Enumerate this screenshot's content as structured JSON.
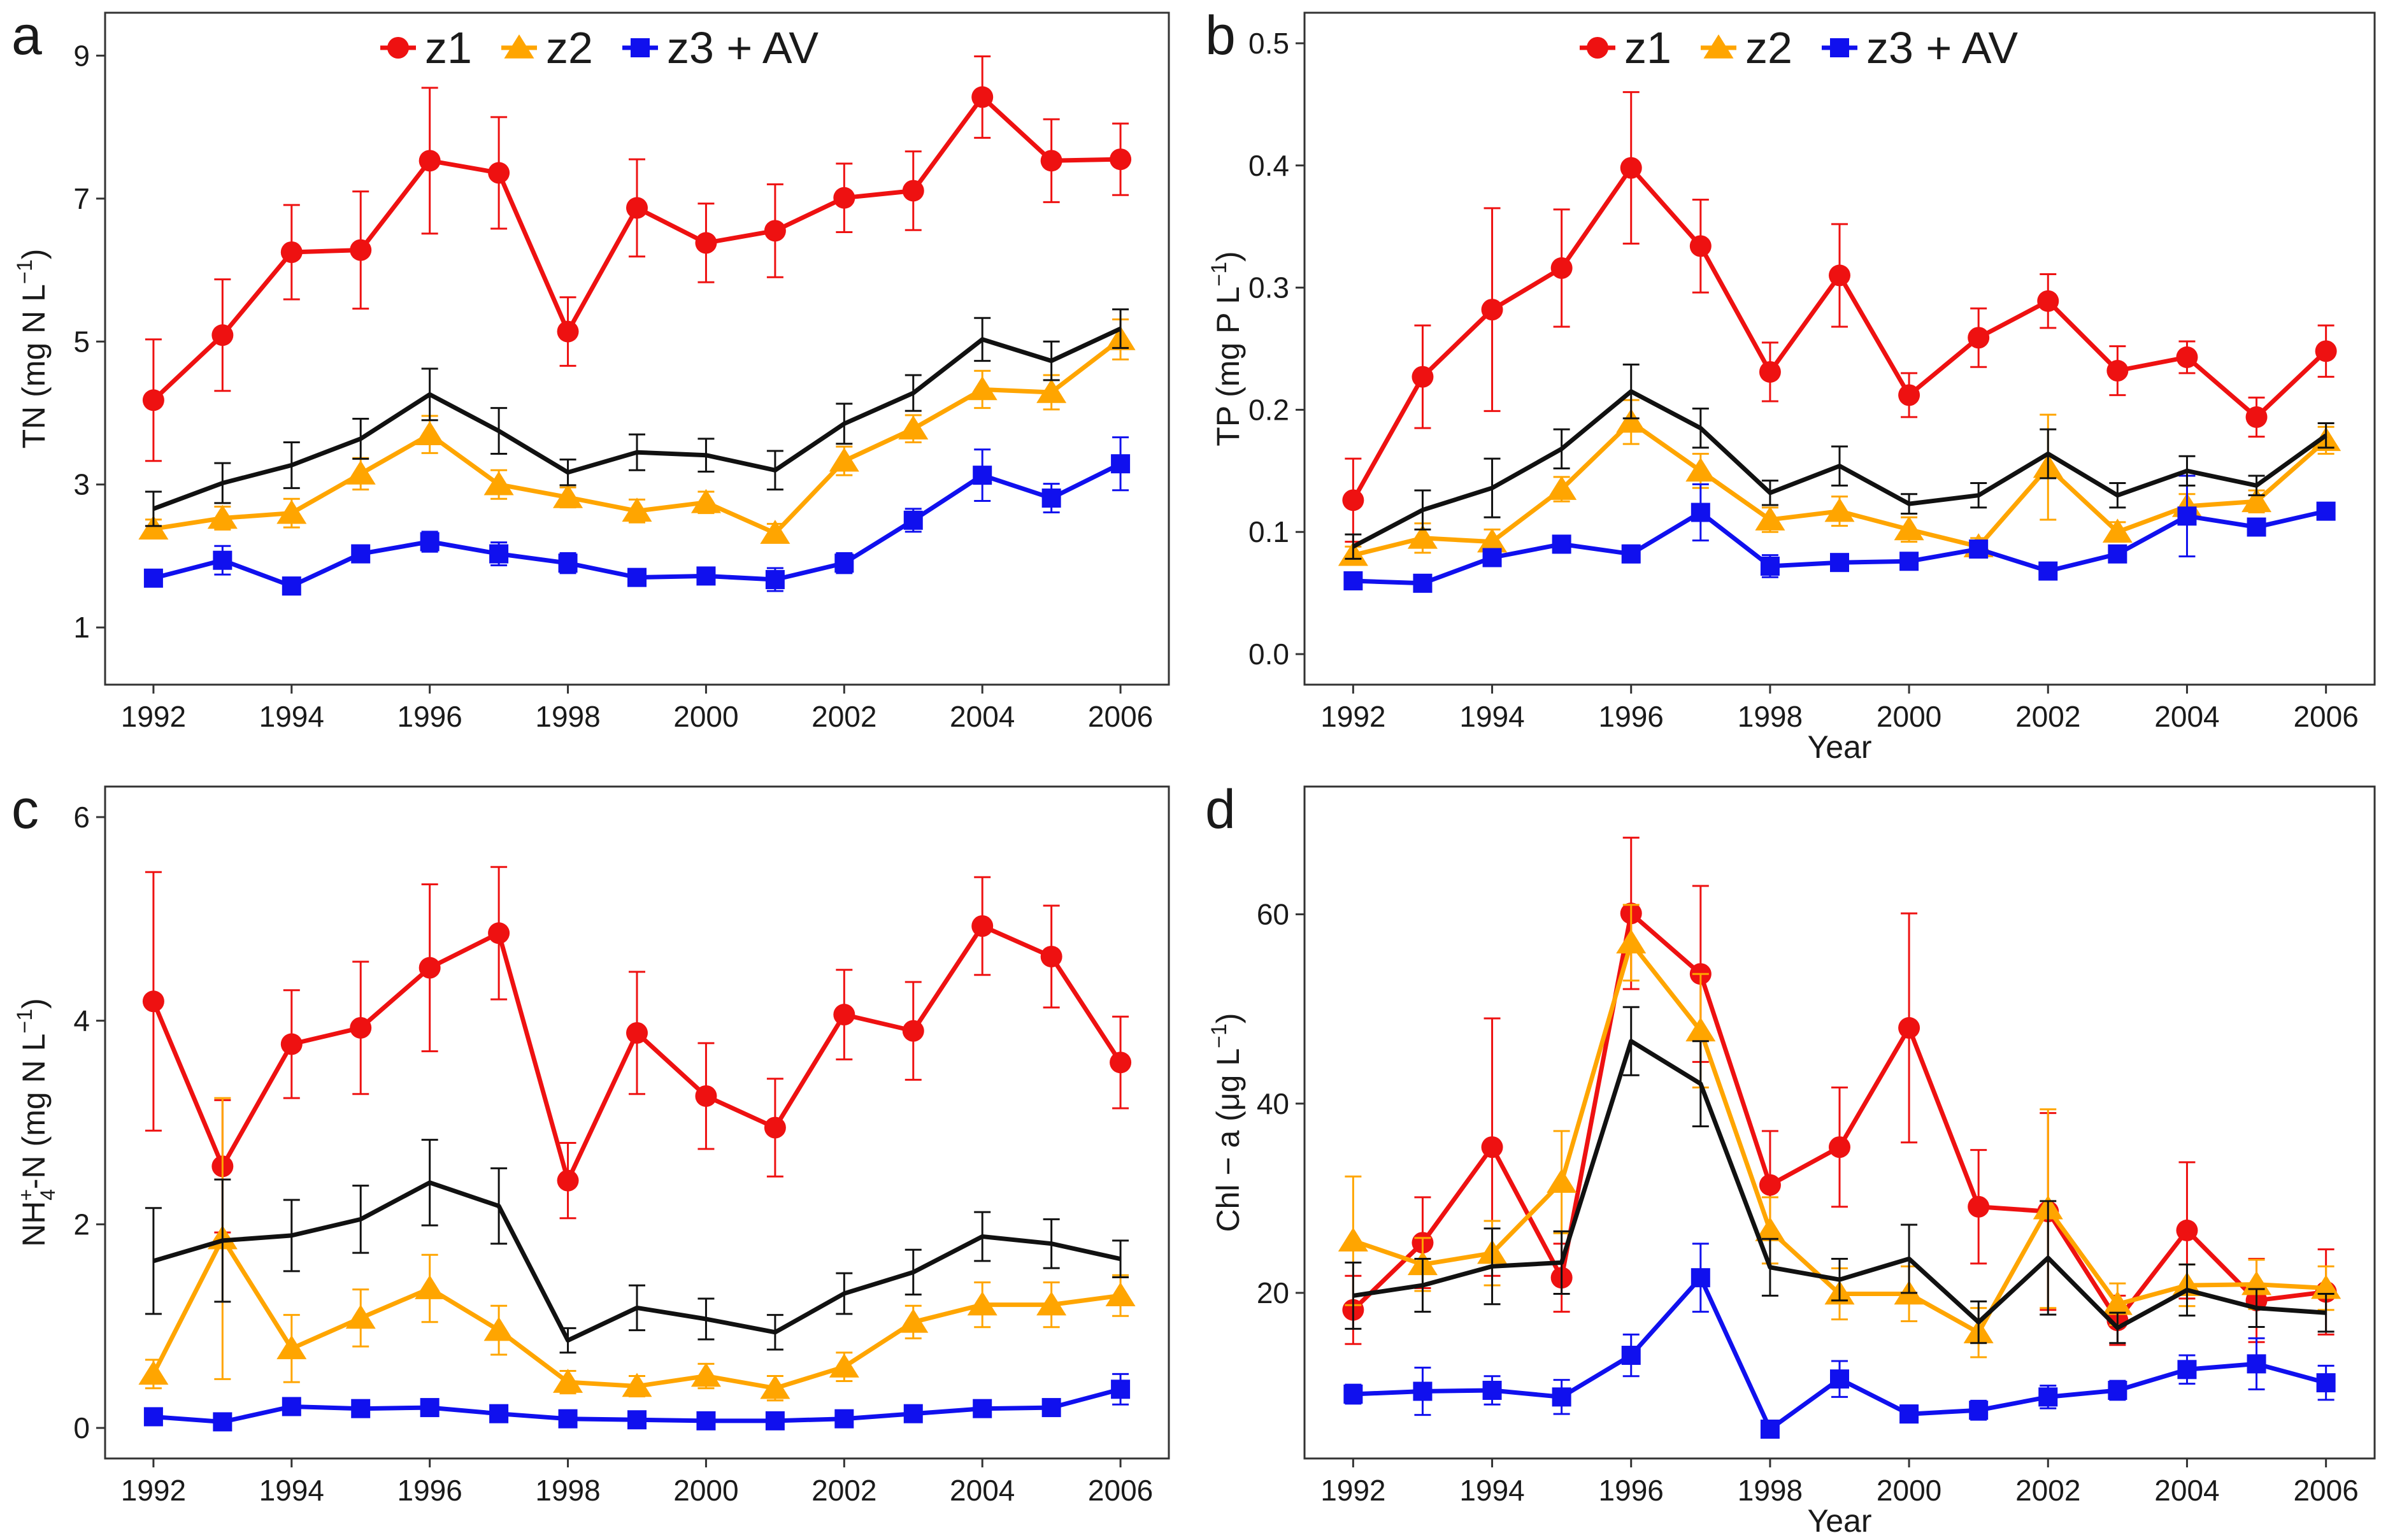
{
  "colors": {
    "z1": "#ee1111",
    "z2": "#ffa500",
    "z3": "#1010ee",
    "mean": "#111111"
  },
  "legend": {
    "z1": "z1",
    "z2": "z2",
    "z3": "z3 + AV"
  },
  "chart_data": [
    {
      "panel": "a",
      "type": "line",
      "xlabel": "",
      "ylabel": "TN",
      "ylim": [
        0.2,
        9.6
      ],
      "yticks": [
        1,
        3,
        5,
        7,
        9
      ],
      "x": [
        1992,
        1993,
        1994,
        1995,
        1996,
        1997,
        1998,
        1999,
        2000,
        2001,
        2002,
        2003,
        2004,
        2005,
        2006
      ],
      "xticks": [
        1992,
        1994,
        1996,
        1998,
        2000,
        2002,
        2004,
        2006
      ],
      "series": [
        {
          "name": "z1",
          "values": [
            4.18,
            5.09,
            6.25,
            6.28,
            7.53,
            7.36,
            5.14,
            6.87,
            6.38,
            6.55,
            7.01,
            7.11,
            8.42,
            7.53,
            7.55
          ],
          "err": [
            0.85,
            0.78,
            0.66,
            0.82,
            1.02,
            0.78,
            0.48,
            0.68,
            0.55,
            0.65,
            0.48,
            0.55,
            0.57,
            0.58,
            0.5
          ]
        },
        {
          "name": "z2",
          "values": [
            2.38,
            2.53,
            2.6,
            3.15,
            3.7,
            3.0,
            2.82,
            2.63,
            2.75,
            2.32,
            3.33,
            3.78,
            4.33,
            4.29,
            5.03
          ],
          "err": [
            0.13,
            0.16,
            0.2,
            0.22,
            0.26,
            0.2,
            0.14,
            0.16,
            0.15,
            0.13,
            0.2,
            0.19,
            0.26,
            0.24,
            0.28
          ]
        },
        {
          "name": "z3 + AV",
          "values": [
            1.69,
            1.94,
            1.58,
            2.03,
            2.2,
            2.03,
            1.9,
            1.7,
            1.72,
            1.67,
            1.9,
            2.5,
            3.13,
            2.81,
            3.29
          ],
          "err": [
            0.1,
            0.2,
            0.07,
            0.1,
            0.14,
            0.16,
            0.14,
            0.1,
            0.08,
            0.16,
            0.14,
            0.16,
            0.36,
            0.2,
            0.37
          ]
        },
        {
          "name": "mean",
          "values": [
            2.66,
            3.02,
            3.27,
            3.64,
            4.26,
            3.75,
            3.17,
            3.45,
            3.41,
            3.2,
            3.85,
            4.28,
            5.03,
            4.73,
            5.18
          ],
          "err": [
            0.24,
            0.28,
            0.32,
            0.28,
            0.36,
            0.32,
            0.18,
            0.25,
            0.23,
            0.27,
            0.28,
            0.25,
            0.3,
            0.27,
            0.27
          ]
        }
      ]
    },
    {
      "panel": "b",
      "type": "line",
      "xlabel": "Year",
      "ylabel": "TP",
      "ylim": [
        -0.025,
        0.525
      ],
      "yticks": [
        0.0,
        0.1,
        0.2,
        0.3,
        0.4,
        0.5
      ],
      "x": [
        1992,
        1993,
        1994,
        1995,
        1996,
        1997,
        1998,
        1999,
        2000,
        2001,
        2002,
        2003,
        2004,
        2005,
        2006
      ],
      "xticks": [
        1992,
        1994,
        1996,
        1998,
        2000,
        2002,
        2004,
        2006
      ],
      "series": [
        {
          "name": "z1",
          "values": [
            0.126,
            0.227,
            0.282,
            0.316,
            0.398,
            0.334,
            0.231,
            0.31,
            0.212,
            0.259,
            0.289,
            0.232,
            0.243,
            0.194,
            0.248
          ],
          "err": [
            0.034,
            0.042,
            0.083,
            0.048,
            0.062,
            0.038,
            0.024,
            0.042,
            0.018,
            0.024,
            0.022,
            0.02,
            0.013,
            0.016,
            0.021
          ]
        },
        {
          "name": "z2",
          "values": [
            0.081,
            0.095,
            0.092,
            0.135,
            0.19,
            0.15,
            0.11,
            0.117,
            0.102,
            0.088,
            0.153,
            0.1,
            0.121,
            0.125,
            0.175
          ],
          "err": [
            0.007,
            0.012,
            0.01,
            0.01,
            0.018,
            0.014,
            0.01,
            0.012,
            0.01,
            0.007,
            0.043,
            0.008,
            0.01,
            0.009,
            0.011
          ]
        },
        {
          "name": "z3 + AV",
          "values": [
            0.06,
            0.058,
            0.079,
            0.09,
            0.082,
            0.116,
            0.072,
            0.075,
            0.076,
            0.086,
            0.068,
            0.082,
            0.113,
            0.104,
            0.117
          ],
          "err": [
            0.005,
            0.006,
            0.007,
            0.007,
            0.007,
            0.023,
            0.009,
            0.006,
            0.004,
            0.005,
            0.006,
            0.005,
            0.033,
            0.005,
            0.005
          ]
        },
        {
          "name": "mean",
          "values": [
            0.088,
            0.118,
            0.136,
            0.168,
            0.215,
            0.185,
            0.132,
            0.154,
            0.123,
            0.13,
            0.164,
            0.13,
            0.15,
            0.138,
            0.179
          ],
          "err": [
            0.01,
            0.016,
            0.024,
            0.016,
            0.022,
            0.016,
            0.01,
            0.016,
            0.008,
            0.01,
            0.02,
            0.01,
            0.012,
            0.008,
            0.01
          ]
        }
      ]
    },
    {
      "panel": "c",
      "type": "line",
      "xlabel": "",
      "ylabel": "NH4-N",
      "ylim": [
        -0.3,
        6.3
      ],
      "yticks": [
        0,
        2,
        4,
        6
      ],
      "x": [
        1992,
        1993,
        1994,
        1995,
        1996,
        1997,
        1998,
        1999,
        2000,
        2001,
        2002,
        2003,
        2004,
        2005,
        2006
      ],
      "xticks": [
        1992,
        1994,
        1996,
        1998,
        2000,
        2002,
        2004,
        2006
      ],
      "series": [
        {
          "name": "z1",
          "values": [
            4.19,
            2.57,
            3.77,
            3.93,
            4.52,
            4.86,
            2.43,
            3.88,
            3.26,
            2.95,
            4.06,
            3.9,
            4.93,
            4.63,
            3.59
          ],
          "err": [
            1.27,
            0.65,
            0.53,
            0.65,
            0.82,
            0.65,
            0.37,
            0.6,
            0.52,
            0.48,
            0.44,
            0.48,
            0.48,
            0.5,
            0.45
          ]
        },
        {
          "name": "z2",
          "values": [
            0.53,
            1.86,
            0.78,
            1.08,
            1.37,
            0.96,
            0.45,
            0.41,
            0.51,
            0.39,
            0.6,
            1.04,
            1.21,
            1.21,
            1.3
          ],
          "err": [
            0.14,
            1.38,
            0.33,
            0.28,
            0.33,
            0.24,
            0.11,
            0.1,
            0.12,
            0.12,
            0.14,
            0.16,
            0.22,
            0.22,
            0.2
          ]
        },
        {
          "name": "z3 + AV",
          "values": [
            0.11,
            0.06,
            0.21,
            0.19,
            0.2,
            0.14,
            0.09,
            0.08,
            0.07,
            0.07,
            0.09,
            0.14,
            0.19,
            0.2,
            0.38
          ],
          "err": [
            0.04,
            0.04,
            0.05,
            0.04,
            0.04,
            0.04,
            0.03,
            0.03,
            0.03,
            0.03,
            0.03,
            0.04,
            0.04,
            0.04,
            0.15
          ]
        },
        {
          "name": "mean",
          "values": [
            1.64,
            1.84,
            1.89,
            2.05,
            2.41,
            2.18,
            0.86,
            1.18,
            1.07,
            0.94,
            1.32,
            1.53,
            1.88,
            1.81,
            1.66
          ],
          "err": [
            0.52,
            0.6,
            0.35,
            0.33,
            0.42,
            0.37,
            0.12,
            0.22,
            0.2,
            0.17,
            0.2,
            0.22,
            0.24,
            0.24,
            0.18
          ]
        }
      ]
    },
    {
      "panel": "d",
      "type": "line",
      "xlabel": "Year",
      "ylabel": "Chl-a",
      "ylim": [
        2.5,
        73.5
      ],
      "yticks": [
        20,
        40,
        60
      ],
      "x": [
        1992,
        1993,
        1994,
        1995,
        1996,
        1997,
        1998,
        1999,
        2000,
        2001,
        2002,
        2003,
        2004,
        2005,
        2006
      ],
      "xticks": [
        1992,
        1994,
        1996,
        1998,
        2000,
        2002,
        2004,
        2006
      ],
      "series": [
        {
          "name": "z1",
          "values": [
            18.2,
            25.3,
            35.4,
            21.6,
            60.1,
            53.7,
            31.4,
            35.4,
            48.0,
            29.1,
            28.6,
            17.1,
            26.6,
            19.2,
            20.1
          ],
          "err": [
            3.6,
            4.8,
            13.6,
            3.6,
            8.0,
            9.3,
            5.7,
            6.3,
            12.1,
            6.0,
            10.4,
            2.6,
            7.2,
            4.4,
            4.5
          ]
        },
        {
          "name": "z2",
          "values": [
            25.5,
            23.0,
            24.2,
            31.7,
            57.0,
            47.7,
            26.6,
            19.9,
            19.9,
            15.8,
            28.9,
            18.8,
            20.8,
            20.9,
            20.5
          ],
          "err": [
            6.8,
            2.8,
            3.4,
            5.4,
            4.0,
            6.0,
            3.5,
            2.7,
            2.9,
            2.6,
            10.5,
            2.2,
            2.2,
            2.6,
            2.3
          ]
        },
        {
          "name": "z3 + AV",
          "values": [
            9.3,
            9.6,
            9.7,
            9.0,
            13.4,
            21.6,
            5.6,
            10.9,
            7.2,
            7.6,
            9.0,
            9.7,
            11.9,
            12.5,
            10.5
          ],
          "err": [
            1.0,
            2.5,
            1.5,
            1.8,
            2.2,
            3.6,
            0.8,
            1.9,
            0.9,
            1.0,
            1.2,
            1.0,
            1.5,
            2.7,
            1.8
          ]
        },
        {
          "name": "mean",
          "values": [
            19.7,
            20.8,
            22.8,
            23.2,
            46.6,
            42.1,
            22.7,
            21.4,
            23.6,
            16.9,
            23.7,
            16.3,
            20.3,
            18.4,
            17.9
          ],
          "err": [
            3.5,
            2.8,
            4.0,
            3.3,
            3.6,
            4.5,
            3.0,
            2.2,
            3.6,
            2.2,
            6.0,
            1.6,
            2.7,
            2.0,
            2.0
          ]
        }
      ]
    }
  ],
  "panels_text": [
    {
      "letter": "a",
      "ylabel_prefix": "TN (mg N L",
      "ylabel_exp": "−1",
      "ylabel_suffix": ")",
      "xlabel": "",
      "legend": true
    },
    {
      "letter": "b",
      "ylabel_prefix": "TP (mg P L",
      "ylabel_exp": "−1",
      "ylabel_suffix": ")",
      "xlabel": "Year",
      "legend": true
    },
    {
      "letter": "c",
      "ylabel_prefix": "NH",
      "ylabel_sub": "4",
      "ylabel_sup": "+",
      "ylabel_suffix2": "-N (mg N L",
      "ylabel_exp": "−1",
      "ylabel_suffix": ")",
      "xlabel": "",
      "legend": false
    },
    {
      "letter": "d",
      "ylabel_prefix": "Chl − a (μg L",
      "ylabel_exp": "−1",
      "ylabel_suffix": ")",
      "xlabel": "Year",
      "legend": false
    }
  ]
}
